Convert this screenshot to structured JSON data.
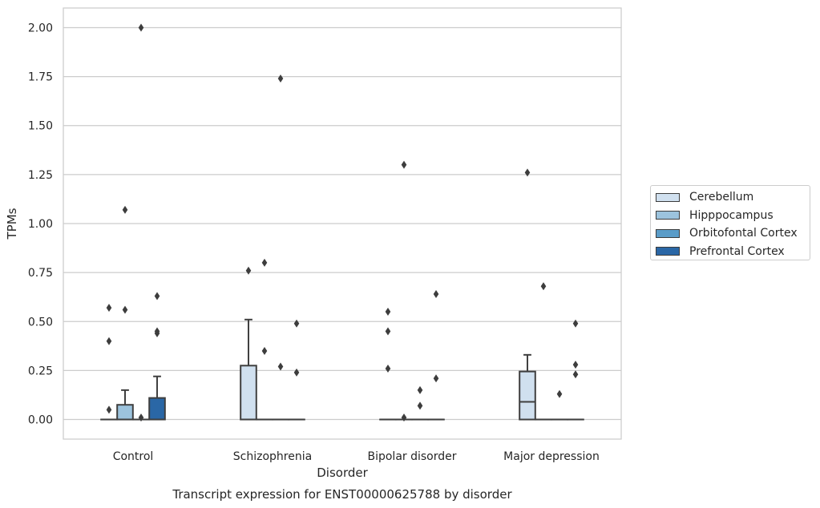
{
  "chart_data": {
    "type": "box",
    "title": "Transcript expression for ENST00000625788 by disorder",
    "xlabel": "Disorder",
    "ylabel": "TPMs",
    "ylim": [
      -0.1,
      2.1
    ],
    "yticks": [
      "0.00",
      "0.25",
      "0.50",
      "0.75",
      "1.00",
      "1.25",
      "1.50",
      "1.75",
      "2.00"
    ],
    "ytick_values": [
      0,
      0.25,
      0.5,
      0.75,
      1.0,
      1.25,
      1.5,
      1.75,
      2.0
    ],
    "categories": [
      "Control",
      "Schizophrenia",
      "Bipolar disorder",
      "Major depression"
    ],
    "grid": "horizontal",
    "legend_position": "right",
    "series": [
      {
        "name": "Cerebellum",
        "color": "#d0e0ef",
        "boxes": [
          {
            "q1": 0,
            "median": 0,
            "q3": 0,
            "whisker_low": 0,
            "whisker_high": 0,
            "outliers": [
              0.05,
              0.4,
              0.57
            ]
          },
          {
            "q1": 0,
            "median": 0,
            "q3": 0.275,
            "whisker_low": 0,
            "whisker_high": 0.51,
            "outliers": [
              0.76
            ]
          },
          {
            "q1": 0,
            "median": 0,
            "q3": 0,
            "whisker_low": 0,
            "whisker_high": 0,
            "outliers": [
              0.26,
              0.45,
              0.55
            ]
          },
          {
            "q1": 0,
            "median": 0.09,
            "q3": 0.245,
            "whisker_low": 0,
            "whisker_high": 0.33,
            "outliers": [
              1.26
            ]
          }
        ]
      },
      {
        "name": "Hipppocampus",
        "color": "#9cc3dd",
        "boxes": [
          {
            "q1": 0,
            "median": 0,
            "q3": 0.075,
            "whisker_low": 0,
            "whisker_high": 0.15,
            "outliers": [
              0.56,
              1.07
            ]
          },
          {
            "q1": 0,
            "median": 0,
            "q3": 0,
            "whisker_low": 0,
            "whisker_high": 0,
            "outliers": [
              0.35,
              0.8
            ]
          },
          {
            "q1": 0,
            "median": 0,
            "q3": 0,
            "whisker_low": 0,
            "whisker_high": 0,
            "outliers": [
              0.01,
              1.3
            ]
          },
          {
            "q1": 0,
            "median": 0,
            "q3": 0,
            "whisker_low": 0,
            "whisker_high": 0,
            "outliers": [
              0.68
            ]
          }
        ]
      },
      {
        "name": "Orbitofontal Cortex",
        "color": "#5a9cc8",
        "boxes": [
          {
            "q1": 0,
            "median": 0,
            "q3": 0,
            "whisker_low": 0,
            "whisker_high": 0,
            "outliers": [
              0.01,
              2.0
            ]
          },
          {
            "q1": 0,
            "median": 0,
            "q3": 0,
            "whisker_low": 0,
            "whisker_high": 0,
            "outliers": [
              0.27,
              1.74
            ]
          },
          {
            "q1": 0,
            "median": 0,
            "q3": 0,
            "whisker_low": 0,
            "whisker_high": 0,
            "outliers": [
              0.07,
              0.15
            ]
          },
          {
            "q1": 0,
            "median": 0,
            "q3": 0,
            "whisker_low": 0,
            "whisker_high": 0,
            "outliers": [
              0.13
            ]
          }
        ]
      },
      {
        "name": "Prefrontal Cortex",
        "color": "#2a67a6",
        "boxes": [
          {
            "q1": 0,
            "median": 0,
            "q3": 0.11,
            "whisker_low": 0,
            "whisker_high": 0.22,
            "outliers": [
              0.44,
              0.45,
              0.63
            ]
          },
          {
            "q1": 0,
            "median": 0,
            "q3": 0,
            "whisker_low": 0,
            "whisker_high": 0,
            "outliers": [
              0.24,
              0.49
            ]
          },
          {
            "q1": 0,
            "median": 0,
            "q3": 0,
            "whisker_low": 0,
            "whisker_high": 0,
            "outliers": [
              0.21,
              0.64
            ]
          },
          {
            "q1": 0,
            "median": 0,
            "q3": 0,
            "whisker_low": 0,
            "whisker_high": 0,
            "outliers": [
              0.23,
              0.28,
              0.49
            ]
          }
        ]
      }
    ]
  }
}
